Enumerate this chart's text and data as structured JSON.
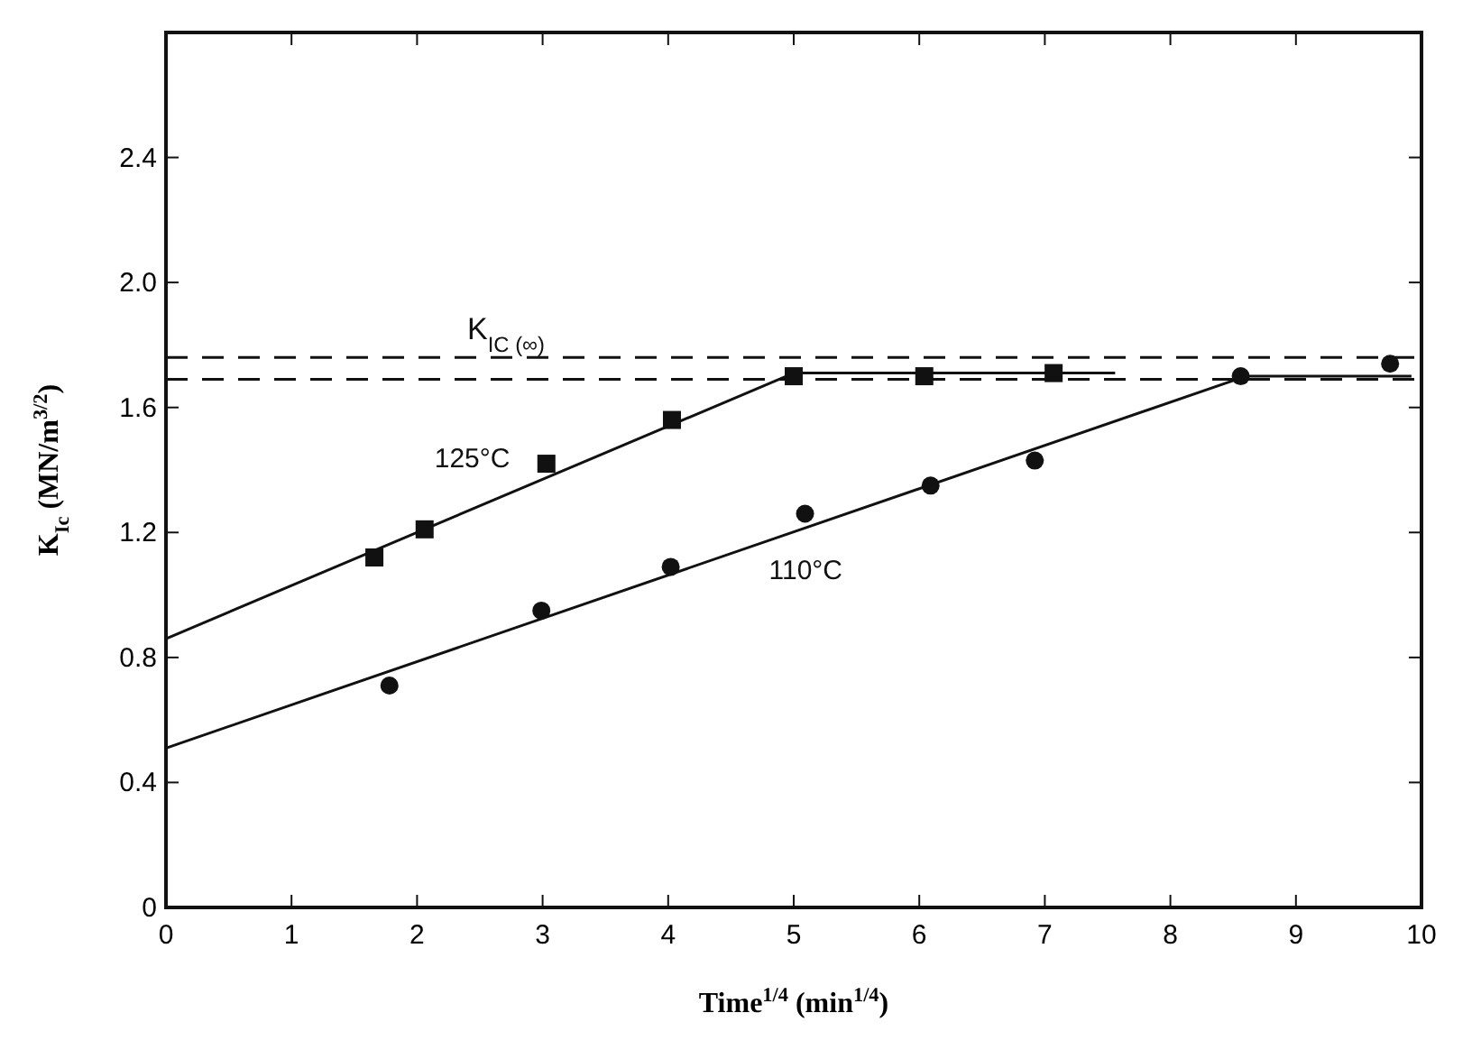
{
  "chart_data": {
    "type": "scatter",
    "xlabel": "Time$^{1/4}$ (min$^{1/4}$)",
    "ylabel": "K$_{Ic}$ (MN/m$^{3/2}$)",
    "xlim": [
      0,
      10
    ],
    "ylim": [
      0,
      2.8
    ],
    "xticks": [
      0,
      1,
      2,
      3,
      4,
      5,
      6,
      7,
      8,
      9,
      10
    ],
    "yticks": [
      0,
      {
        "value": 0.4,
        "label": "0.4"
      },
      {
        "value": 0.8,
        "label": "0.8"
      },
      {
        "value": 1.2,
        "label": "1.2"
      },
      {
        "value": 1.6,
        "label": "1.6"
      },
      {
        "value": 2.0,
        "label": "2.0"
      },
      {
        "value": 2.4,
        "label": "2.4"
      }
    ],
    "grid": false,
    "series": [
      {
        "name": "125°C",
        "marker": "square",
        "color": "#111111",
        "x": [
          1.66,
          2.06,
          3.03,
          4.03,
          5.0,
          6.04,
          7.07
        ],
        "values": [
          1.12,
          1.21,
          1.42,
          1.56,
          1.7,
          1.7,
          1.71
        ]
      },
      {
        "name": "110°C",
        "marker": "circle",
        "color": "#111111",
        "x": [
          1.78,
          2.99,
          4.02,
          5.09,
          6.09,
          6.92,
          8.56,
          9.75
        ],
        "values": [
          0.71,
          0.95,
          1.09,
          1.26,
          1.35,
          1.43,
          1.7,
          1.74
        ]
      },
      {
        "type": "line",
        "marker": "none",
        "line_style": "solid",
        "color": "#111111",
        "x": [
          0,
          5.0,
          7.56
        ],
        "values": [
          0.86,
          1.71,
          1.71
        ]
      },
      {
        "type": "line",
        "marker": "none",
        "line_style": "solid",
        "color": "#111111",
        "x": [
          0,
          8.6,
          9.92
        ],
        "values": [
          0.51,
          1.7,
          1.7
        ]
      }
    ],
    "ref_lines": [
      {
        "axis": "y",
        "value": 1.76,
        "label": "K$_{IC (∞)}$",
        "line_style": "dashed",
        "color": "#111111"
      },
      {
        "axis": "y",
        "value": 1.69,
        "line_style": "dashed",
        "color": "#111111"
      }
    ]
  }
}
